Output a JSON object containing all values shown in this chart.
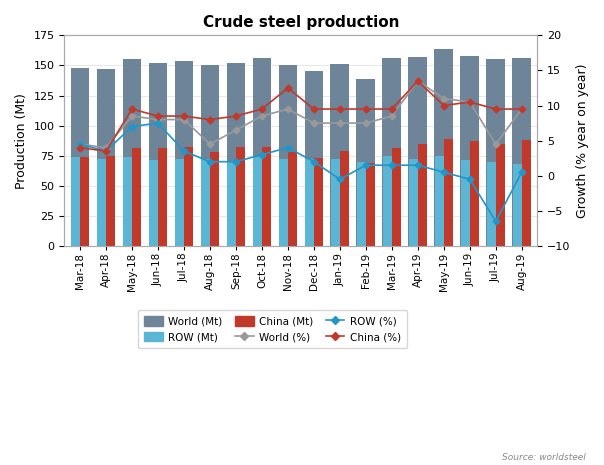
{
  "title": "Crude steel production",
  "months": [
    "Mar-18",
    "Apr-18",
    "May-18",
    "Jun-18",
    "Jul-18",
    "Aug-18",
    "Sep-18",
    "Oct-18",
    "Nov-18",
    "Dec-18",
    "Jan-19",
    "Feb-19",
    "Mar-19",
    "Apr-19",
    "May-19",
    "Jun-19",
    "Jul-19",
    "Aug-19"
  ],
  "world_mt": [
    148,
    147,
    155,
    152,
    154,
    150,
    152,
    156,
    150,
    145,
    151,
    139,
    156,
    157,
    164,
    158,
    155,
    156
  ],
  "row_mt": [
    74,
    72,
    74,
    71,
    72,
    72,
    70,
    74,
    72,
    72,
    72,
    70,
    75,
    72,
    75,
    71,
    70,
    68
  ],
  "china_mt": [
    74,
    75,
    81,
    81,
    82,
    78,
    82,
    82,
    78,
    73,
    79,
    69,
    81,
    85,
    89,
    87,
    85,
    88
  ],
  "world_pct": [
    4.5,
    4.0,
    8.5,
    8.0,
    8.0,
    4.5,
    6.5,
    8.5,
    9.5,
    7.5,
    7.5,
    7.5,
    8.5,
    13.5,
    11.0,
    10.5,
    4.5,
    9.5
  ],
  "row_pct": [
    4.5,
    3.5,
    7.0,
    7.5,
    3.5,
    2.0,
    2.0,
    3.0,
    4.0,
    2.0,
    -0.5,
    1.5,
    1.5,
    1.5,
    0.5,
    -0.5,
    -6.5,
    0.5
  ],
  "china_pct": [
    4.0,
    3.5,
    9.5,
    8.5,
    8.5,
    8.0,
    8.5,
    9.5,
    12.5,
    9.5,
    9.5,
    9.5,
    9.5,
    13.5,
    10.0,
    10.5,
    9.5,
    9.5
  ],
  "world_bar_color": "#6d8499",
  "row_bar_color": "#5bb5d5",
  "china_bar_color": "#c0392b",
  "world_line_color": "#999999",
  "row_line_color": "#2196c8",
  "china_line_color": "#c0392b",
  "ylabel_left": "Production (Mt)",
  "ylabel_right": "Growth (% year on year)",
  "ylim_left": [
    0,
    175
  ],
  "ylim_right": [
    -10,
    20
  ],
  "yticks_left": [
    0,
    25,
    50,
    75,
    100,
    125,
    150,
    175
  ],
  "yticks_right": [
    -10,
    -5,
    0,
    5,
    10,
    15,
    20
  ],
  "bg_color": "#ffffff",
  "source_text": "Source: worldsteel"
}
